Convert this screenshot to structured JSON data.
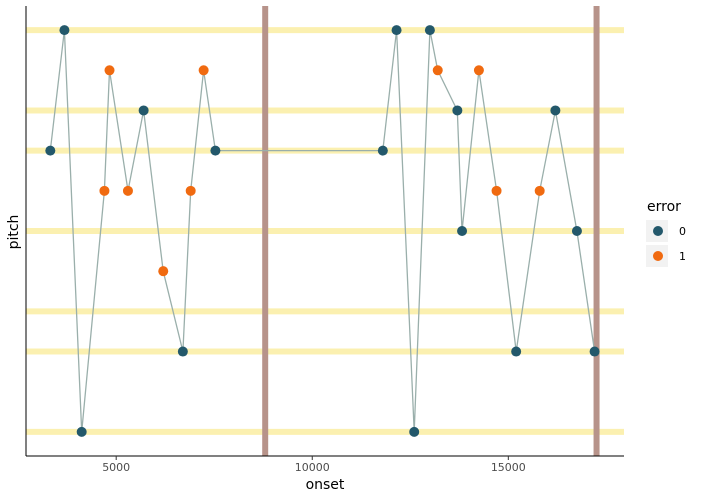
{
  "chart_data": {
    "type": "scatter",
    "xlabel": "onset",
    "ylabel": "pitch",
    "xlim": [
      2700,
      17950
    ],
    "ylim": [
      -0.6,
      10.6
    ],
    "x_ticks": [
      5000,
      10000,
      15000
    ],
    "x_tick_labels": [
      "5000",
      "10000",
      "15000"
    ],
    "grid": false,
    "line_color": "#9aafab",
    "reference_lines": {
      "horizontal": {
        "y": [
          0,
          2,
          3,
          5,
          7,
          8,
          10
        ],
        "color": "#fbf0b0"
      },
      "vertical": {
        "x": [
          8800,
          17250
        ],
        "color": "#b7938a"
      }
    },
    "legend": {
      "title": "error",
      "position": "right",
      "entries": [
        {
          "label": "0",
          "color": "#23586b"
        },
        {
          "label": "1",
          "color": "#f06a10"
        }
      ]
    },
    "points": [
      {
        "x": 3320,
        "y": 7,
        "error": 0
      },
      {
        "x": 3680,
        "y": 10,
        "error": 0
      },
      {
        "x": 4120,
        "y": 0,
        "error": 0
      },
      {
        "x": 4700,
        "y": 6,
        "error": 1
      },
      {
        "x": 4830,
        "y": 9,
        "error": 1
      },
      {
        "x": 5300,
        "y": 6,
        "error": 1
      },
      {
        "x": 5700,
        "y": 8,
        "error": 0
      },
      {
        "x": 6200,
        "y": 4,
        "error": 1
      },
      {
        "x": 6700,
        "y": 2,
        "error": 0
      },
      {
        "x": 6900,
        "y": 6,
        "error": 1
      },
      {
        "x": 7230,
        "y": 9,
        "error": 1
      },
      {
        "x": 7530,
        "y": 7,
        "error": 0
      },
      {
        "x": 11800,
        "y": 7,
        "error": 0
      },
      {
        "x": 12150,
        "y": 10,
        "error": 0
      },
      {
        "x": 12600,
        "y": 0,
        "error": 0
      },
      {
        "x": 13000,
        "y": 10,
        "error": 0
      },
      {
        "x": 13200,
        "y": 9,
        "error": 1
      },
      {
        "x": 13700,
        "y": 8,
        "error": 0
      },
      {
        "x": 13820,
        "y": 5,
        "error": 0
      },
      {
        "x": 14250,
        "y": 9,
        "error": 1
      },
      {
        "x": 14700,
        "y": 6,
        "error": 1
      },
      {
        "x": 15200,
        "y": 2,
        "error": 0
      },
      {
        "x": 15800,
        "y": 6,
        "error": 1
      },
      {
        "x": 16200,
        "y": 8,
        "error": 0
      },
      {
        "x": 16750,
        "y": 5,
        "error": 0
      },
      {
        "x": 17200,
        "y": 2,
        "error": 0
      }
    ]
  }
}
